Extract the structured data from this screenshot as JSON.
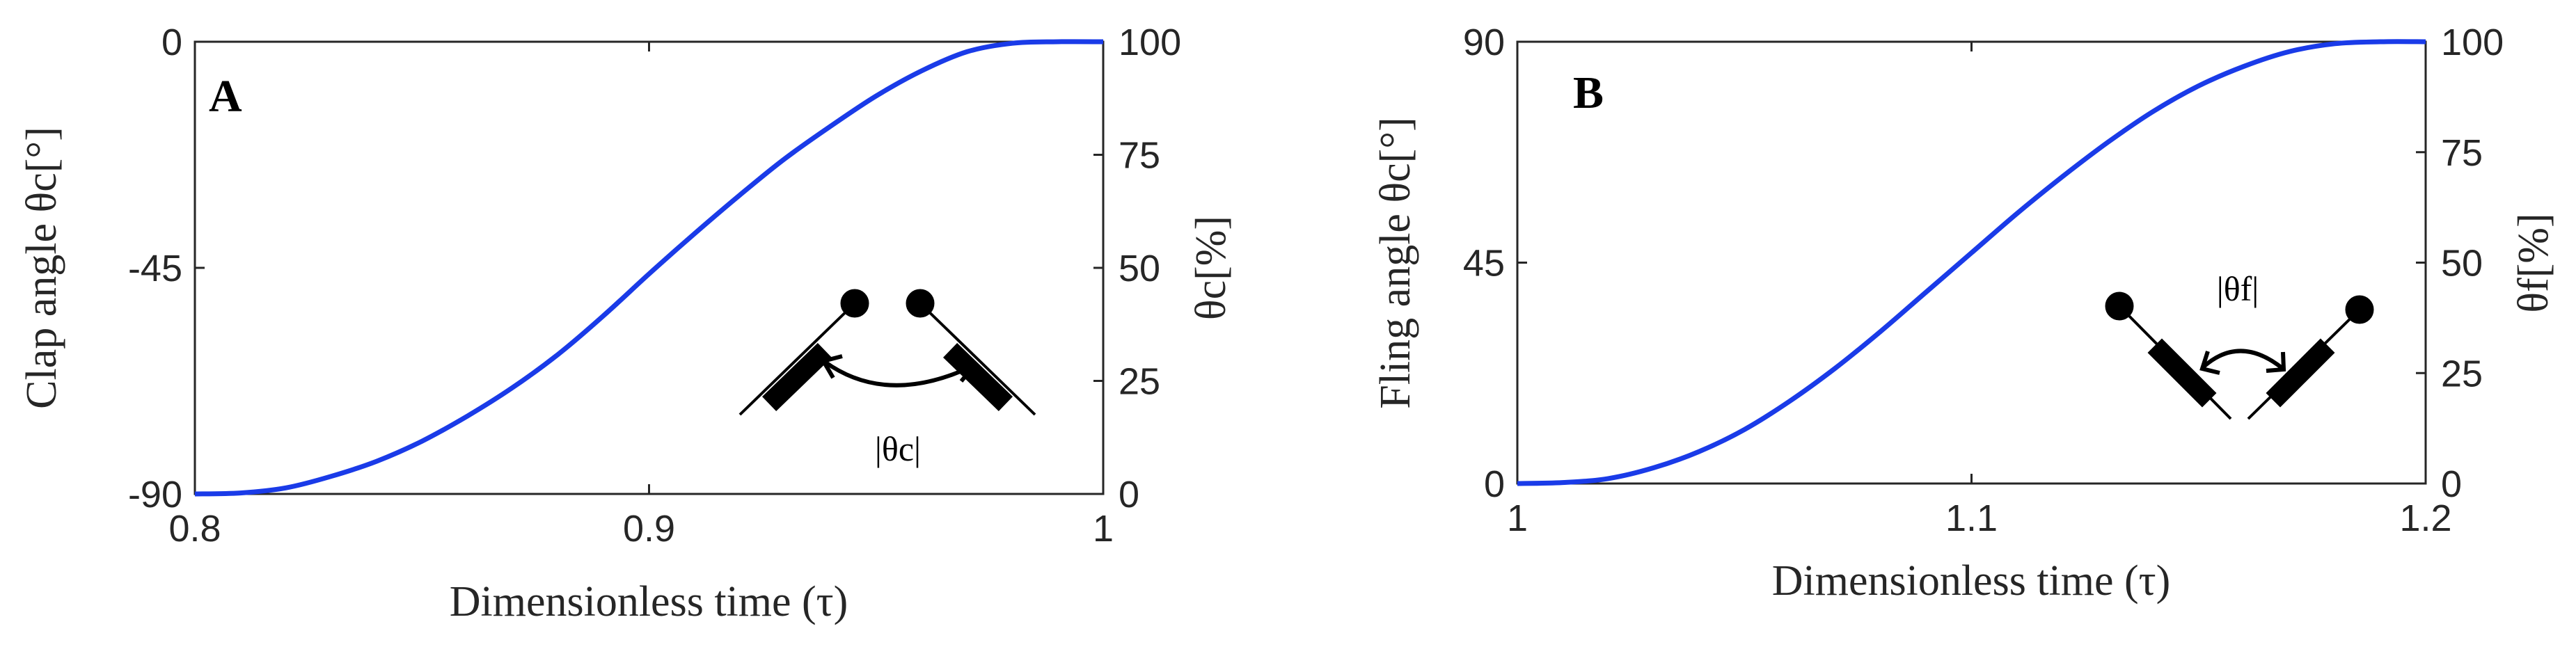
{
  "chart_data": [
    {
      "type": "line",
      "panel_label": "A",
      "xlabel": "Dimensionless time (τ)",
      "ylabel": "Clap angle θc[°]",
      "ylabel_right": "θc[%]",
      "xlim": [
        0.8,
        1.0
      ],
      "ylim": [
        -90,
        0
      ],
      "ylim_right": [
        0,
        100
      ],
      "xticks": [
        "0.8",
        "0.9",
        "1"
      ],
      "yticks": [
        "-90",
        "-45",
        "0"
      ],
      "yticks_right": [
        "0",
        "25",
        "50",
        "75",
        "100"
      ],
      "grid": false,
      "annotation": "|θc|",
      "series": [
        {
          "color": "#1a3be8",
          "x": [
            0.8,
            0.81,
            0.82,
            0.83,
            0.84,
            0.85,
            0.86,
            0.87,
            0.88,
            0.89,
            0.9,
            0.91,
            0.92,
            0.93,
            0.94,
            0.95,
            0.96,
            0.97,
            0.98,
            0.99,
            1.0
          ],
          "y": [
            -90,
            -89.8,
            -88.8,
            -86.5,
            -83.5,
            -79.5,
            -74.5,
            -68.8,
            -62.2,
            -54.5,
            -46.2,
            -38.2,
            -30.5,
            -23.2,
            -16.8,
            -10.8,
            -5.8,
            -2.0,
            -0.3,
            0,
            0
          ]
        }
      ]
    },
    {
      "type": "line",
      "panel_label": "B",
      "xlabel": "Dimensionless time (τ)",
      "ylabel": "Fling angle θc[°]",
      "ylabel_right": "θf[%]",
      "xlim": [
        1.0,
        1.2
      ],
      "ylim": [
        0,
        90
      ],
      "ylim_right": [
        0,
        100
      ],
      "xticks": [
        "1",
        "1.1",
        "1.2"
      ],
      "yticks": [
        "0",
        "45",
        "90"
      ],
      "yticks_right": [
        "0",
        "25",
        "50",
        "75",
        "100"
      ],
      "grid": false,
      "annotation": "|θf|",
      "series": [
        {
          "color": "#1a3be8",
          "x": [
            1.0,
            1.01,
            1.02,
            1.03,
            1.04,
            1.05,
            1.06,
            1.07,
            1.08,
            1.09,
            1.1,
            1.11,
            1.12,
            1.13,
            1.14,
            1.15,
            1.16,
            1.17,
            1.18,
            1.19,
            1.2
          ],
          "y": [
            0,
            0.2,
            1.0,
            3.2,
            6.5,
            11.0,
            16.8,
            23.5,
            31.0,
            39.0,
            47.0,
            55.0,
            62.5,
            69.5,
            75.8,
            81.0,
            85.0,
            88.0,
            89.6,
            90,
            90
          ]
        }
      ]
    }
  ]
}
